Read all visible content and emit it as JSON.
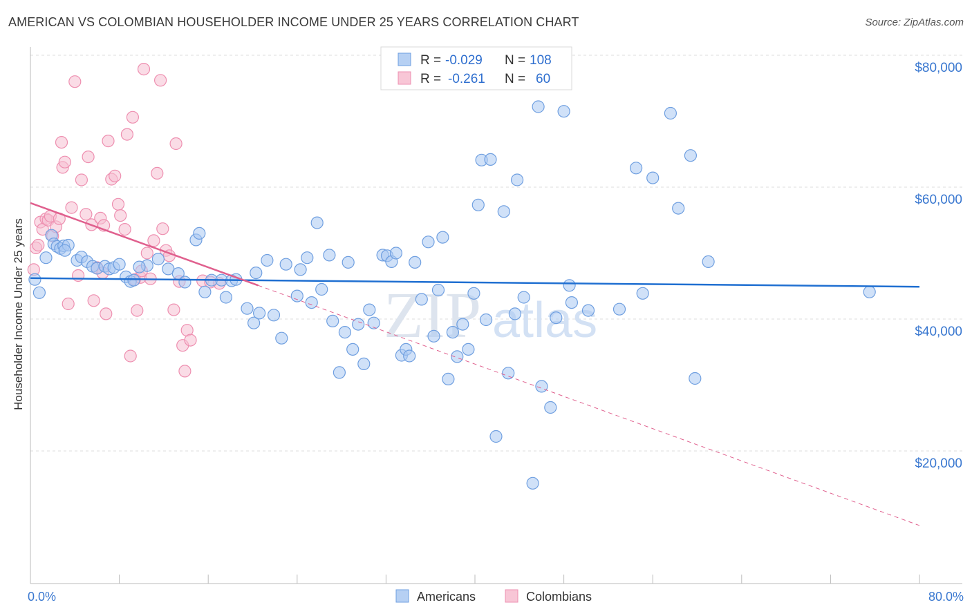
{
  "header": {
    "title": "AMERICAN VS COLOMBIAN HOUSEHOLDER INCOME UNDER 25 YEARS CORRELATION CHART",
    "source": "Source: ZipAtlas.com"
  },
  "colors": {
    "americans": "#6f9fe0",
    "americans_fill": "#a9c8f2",
    "americans_line": "#1f6fd1",
    "colombians": "#ee8fb0",
    "colombians_fill": "#f6bfd2",
    "colombians_line": "#e0608e",
    "axis_text": "#3a78d0",
    "grid": "#dddddd",
    "watermark": "#dde6f2"
  },
  "legend_box": {
    "rows": [
      {
        "r_label": "R =",
        "r_value": "-0.029",
        "n_label": "N =",
        "n_value": "108"
      },
      {
        "r_label": "R =",
        "r_value": "-0.261",
        "n_label": "N =",
        "n_value": "60"
      }
    ]
  },
  "bottom_legend": [
    "Americans",
    "Colombians"
  ],
  "watermark": {
    "part1": "ZIP",
    "part2": "atlas"
  },
  "chart_data": {
    "type": "scatter",
    "title": "AMERICAN VS COLOMBIAN HOUSEHOLDER INCOME UNDER 25 YEARS CORRELATION CHART",
    "xlabel": "",
    "ylabel": "Householder Income Under 25 years",
    "xlim": [
      0,
      80
    ],
    "ylim": [
      0,
      82000
    ],
    "x_tick_labels": [
      "0.0%",
      "80.0%"
    ],
    "y_ticks": [
      20000,
      40000,
      60000,
      80000
    ],
    "y_tick_labels": [
      "$20,000",
      "$40,000",
      "$60,000",
      "$80,000"
    ],
    "grid": true,
    "legend_position": "top-center",
    "series": [
      {
        "name": "Americans",
        "r": -0.029,
        "n": 108,
        "trend": {
          "x": [
            0,
            80
          ],
          "y": [
            46200,
            44900
          ]
        },
        "points": [
          [
            0.4,
            46000
          ],
          [
            0.8,
            44000
          ],
          [
            1.4,
            49300
          ],
          [
            1.9,
            52700
          ],
          [
            2.1,
            51400
          ],
          [
            2.4,
            51000
          ],
          [
            2.7,
            50700
          ],
          [
            3.0,
            51100
          ],
          [
            3.4,
            51200
          ],
          [
            4.2,
            48900
          ],
          [
            4.6,
            49400
          ],
          [
            5.1,
            48700
          ],
          [
            5.6,
            48000
          ],
          [
            6.0,
            47700
          ],
          [
            6.7,
            48000
          ],
          [
            7.1,
            47600
          ],
          [
            7.5,
            47800
          ],
          [
            8.0,
            48300
          ],
          [
            8.6,
            46400
          ],
          [
            9.0,
            45700
          ],
          [
            9.3,
            45900
          ],
          [
            10.5,
            48100
          ],
          [
            11.5,
            49100
          ],
          [
            12.4,
            47600
          ],
          [
            13.3,
            46900
          ],
          [
            13.9,
            45600
          ],
          [
            14.9,
            52000
          ],
          [
            15.2,
            53000
          ],
          [
            15.7,
            44100
          ],
          [
            16.3,
            45900
          ],
          [
            17.2,
            45900
          ],
          [
            17.6,
            43300
          ],
          [
            18.1,
            45800
          ],
          [
            18.5,
            46000
          ],
          [
            19.5,
            41600
          ],
          [
            20.1,
            39400
          ],
          [
            20.3,
            47000
          ],
          [
            20.6,
            40900
          ],
          [
            21.3,
            48900
          ],
          [
            21.9,
            40600
          ],
          [
            22.6,
            37100
          ],
          [
            23.0,
            48300
          ],
          [
            24.0,
            43500
          ],
          [
            24.3,
            47500
          ],
          [
            24.9,
            49300
          ],
          [
            25.3,
            42500
          ],
          [
            25.8,
            54600
          ],
          [
            26.2,
            44500
          ],
          [
            26.9,
            49700
          ],
          [
            27.2,
            39700
          ],
          [
            27.8,
            31900
          ],
          [
            28.3,
            38000
          ],
          [
            28.6,
            48600
          ],
          [
            29.0,
            35400
          ],
          [
            29.5,
            39200
          ],
          [
            30.0,
            33200
          ],
          [
            30.5,
            41400
          ],
          [
            30.9,
            39400
          ],
          [
            31.7,
            49700
          ],
          [
            32.1,
            49600
          ],
          [
            32.5,
            48700
          ],
          [
            32.9,
            50000
          ],
          [
            33.4,
            34500
          ],
          [
            33.8,
            35400
          ],
          [
            34.1,
            34400
          ],
          [
            34.6,
            48600
          ],
          [
            35.2,
            43000
          ],
          [
            35.8,
            51700
          ],
          [
            36.3,
            37400
          ],
          [
            36.7,
            44400
          ],
          [
            37.1,
            52400
          ],
          [
            37.6,
            30900
          ],
          [
            38.0,
            38000
          ],
          [
            38.4,
            34300
          ],
          [
            38.9,
            39200
          ],
          [
            39.4,
            35400
          ],
          [
            39.9,
            43900
          ],
          [
            40.3,
            57300
          ],
          [
            40.6,
            64100
          ],
          [
            41.0,
            39900
          ],
          [
            41.4,
            64200
          ],
          [
            41.9,
            22200
          ],
          [
            42.6,
            56300
          ],
          [
            43.0,
            31800
          ],
          [
            43.6,
            40800
          ],
          [
            43.8,
            61100
          ],
          [
            44.4,
            43300
          ],
          [
            45.2,
            15100
          ],
          [
            45.7,
            72200
          ],
          [
            46.0,
            29800
          ],
          [
            46.8,
            26600
          ],
          [
            47.3,
            40200
          ],
          [
            48.0,
            71500
          ],
          [
            48.5,
            45100
          ],
          [
            48.7,
            42500
          ],
          [
            50.2,
            41300
          ],
          [
            53.0,
            41500
          ],
          [
            54.5,
            62900
          ],
          [
            55.1,
            43900
          ],
          [
            56.0,
            61400
          ],
          [
            57.6,
            71200
          ],
          [
            58.3,
            56800
          ],
          [
            59.4,
            64800
          ],
          [
            59.8,
            31000
          ],
          [
            61.0,
            48700
          ],
          [
            75.5,
            44100
          ],
          [
            3.1,
            50400
          ],
          [
            9.8,
            47900
          ]
        ]
      },
      {
        "name": "Colombians",
        "r": -0.261,
        "n": 60,
        "trend": {
          "x": [
            0,
            20.5
          ],
          "y": [
            57600,
            45100
          ]
        },
        "trend_extended": {
          "x": [
            20.5,
            80
          ],
          "y": [
            45100,
            8700
          ]
        },
        "points": [
          [
            0.3,
            47500
          ],
          [
            0.5,
            50800
          ],
          [
            0.7,
            51200
          ],
          [
            0.9,
            54700
          ],
          [
            1.1,
            53600
          ],
          [
            1.4,
            55200
          ],
          [
            1.6,
            55000
          ],
          [
            1.8,
            55600
          ],
          [
            2.0,
            52600
          ],
          [
            2.3,
            54000
          ],
          [
            2.6,
            55200
          ],
          [
            2.8,
            66800
          ],
          [
            2.9,
            63000
          ],
          [
            3.1,
            63800
          ],
          [
            3.4,
            42300
          ],
          [
            3.7,
            56900
          ],
          [
            4.0,
            76000
          ],
          [
            4.3,
            46600
          ],
          [
            4.6,
            61100
          ],
          [
            5.0,
            55900
          ],
          [
            5.2,
            64600
          ],
          [
            5.5,
            54300
          ],
          [
            5.7,
            42800
          ],
          [
            6.0,
            47800
          ],
          [
            6.3,
            55300
          ],
          [
            6.6,
            54200
          ],
          [
            6.8,
            40800
          ],
          [
            7.0,
            67000
          ],
          [
            7.3,
            61200
          ],
          [
            7.6,
            61700
          ],
          [
            7.9,
            57400
          ],
          [
            8.1,
            55700
          ],
          [
            8.5,
            53600
          ],
          [
            8.7,
            68000
          ],
          [
            9.0,
            34400
          ],
          [
            9.2,
            70600
          ],
          [
            9.4,
            46000
          ],
          [
            9.6,
            41300
          ],
          [
            9.9,
            46300
          ],
          [
            10.2,
            77900
          ],
          [
            10.5,
            50000
          ],
          [
            10.8,
            46100
          ],
          [
            11.1,
            51900
          ],
          [
            11.4,
            62100
          ],
          [
            11.7,
            76200
          ],
          [
            11.9,
            53700
          ],
          [
            12.2,
            50400
          ],
          [
            12.5,
            49600
          ],
          [
            12.9,
            41400
          ],
          [
            13.1,
            66600
          ],
          [
            13.4,
            45700
          ],
          [
            13.7,
            36000
          ],
          [
            13.9,
            32100
          ],
          [
            14.1,
            38300
          ],
          [
            14.4,
            36800
          ],
          [
            15.5,
            45800
          ],
          [
            16.2,
            45600
          ],
          [
            17.0,
            45400
          ],
          [
            10.0,
            47300
          ],
          [
            6.5,
            47000
          ]
        ]
      }
    ]
  }
}
